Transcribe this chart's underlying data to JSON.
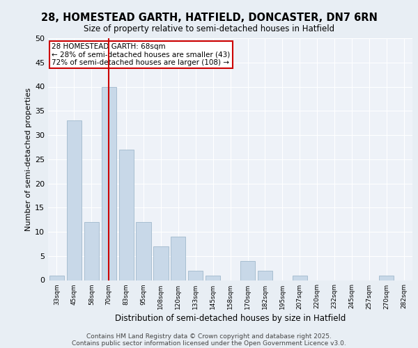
{
  "title1": "28, HOMESTEAD GARTH, HATFIELD, DONCASTER, DN7 6RN",
  "title2": "Size of property relative to semi-detached houses in Hatfield",
  "xlabel": "Distribution of semi-detached houses by size in Hatfield",
  "ylabel": "Number of semi-detached properties",
  "bar_labels": [
    "33sqm",
    "45sqm",
    "58sqm",
    "70sqm",
    "83sqm",
    "95sqm",
    "108sqm",
    "120sqm",
    "133sqm",
    "145sqm",
    "158sqm",
    "170sqm",
    "182sqm",
    "195sqm",
    "207sqm",
    "220sqm",
    "232sqm",
    "245sqm",
    "257sqm",
    "270sqm",
    "282sqm"
  ],
  "bar_values": [
    1,
    33,
    12,
    40,
    27,
    12,
    7,
    9,
    2,
    1,
    0,
    4,
    2,
    0,
    1,
    0,
    0,
    0,
    0,
    1,
    0
  ],
  "bar_color": "#c8d8e8",
  "bar_edge_color": "#a0b8cc",
  "vline_x": 3,
  "vline_color": "#cc0000",
  "annotation_title": "28 HOMESTEAD GARTH: 68sqm",
  "annotation_line1": "← 28% of semi-detached houses are smaller (43)",
  "annotation_line2": "72% of semi-detached houses are larger (108) →",
  "annotation_box_color": "#cc0000",
  "ylim": [
    0,
    50
  ],
  "yticks": [
    0,
    5,
    10,
    15,
    20,
    25,
    30,
    35,
    40,
    45,
    50
  ],
  "bg_color": "#e8eef4",
  "plot_bg_color": "#eef2f8",
  "footer1": "Contains HM Land Registry data © Crown copyright and database right 2025.",
  "footer2": "Contains public sector information licensed under the Open Government Licence v3.0."
}
